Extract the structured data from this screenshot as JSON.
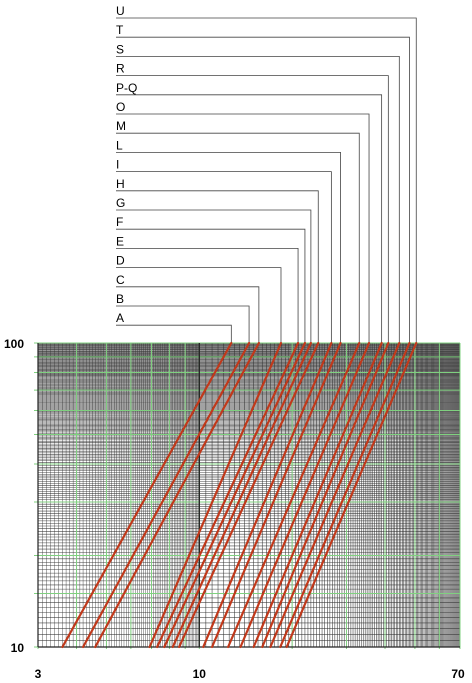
{
  "chart_data": {
    "type": "line",
    "title": "",
    "xlabel": "",
    "ylabel": "",
    "x_scale": "log",
    "y_scale": "log",
    "xlim": [
      3,
      70
    ],
    "ylim": [
      10,
      100
    ],
    "x_tick_labels": [
      "3",
      "10",
      "70"
    ],
    "y_tick_labels": [
      "100",
      "10"
    ],
    "grid": true,
    "grid_color": "#7fd07f",
    "grid_minor_color": "#333333",
    "line_color": "#c0391b",
    "legend": "top leader labels",
    "series": [
      {
        "name": "A",
        "x": [
          3.6,
          12.7
        ],
        "y": [
          10,
          100
        ]
      },
      {
        "name": "B",
        "x": [
          4.2,
          14.5
        ],
        "y": [
          10,
          100
        ]
      },
      {
        "name": "C",
        "x": [
          4.6,
          15.6
        ],
        "y": [
          10,
          100
        ]
      },
      {
        "name": "D",
        "x": [
          6.9,
          18.4
        ],
        "y": [
          10,
          100
        ]
      },
      {
        "name": "E",
        "x": [
          7.3,
          20.9
        ],
        "y": [
          10,
          100
        ]
      },
      {
        "name": "F",
        "x": [
          7.7,
          22.0
        ],
        "y": [
          10,
          100
        ]
      },
      {
        "name": "G",
        "x": [
          8.2,
          23.0
        ],
        "y": [
          10,
          100
        ]
      },
      {
        "name": "H",
        "x": [
          8.6,
          24.3
        ],
        "y": [
          10,
          100
        ]
      },
      {
        "name": "I",
        "x": [
          10.3,
          26.8
        ],
        "y": [
          10,
          100
        ]
      },
      {
        "name": "L",
        "x": [
          11.0,
          28.7
        ],
        "y": [
          10,
          100
        ]
      },
      {
        "name": "M",
        "x": [
          12.4,
          33.0
        ],
        "y": [
          10,
          100
        ]
      },
      {
        "name": "O",
        "x": [
          13.6,
          35.5
        ],
        "y": [
          10,
          100
        ]
      },
      {
        "name": "P-Q",
        "x": [
          15.0,
          39.0
        ],
        "y": [
          10,
          100
        ]
      },
      {
        "name": "R",
        "x": [
          16.0,
          41.0
        ],
        "y": [
          10,
          100
        ]
      },
      {
        "name": "S",
        "x": [
          17.0,
          44.5
        ],
        "y": [
          10,
          100
        ]
      },
      {
        "name": "T",
        "x": [
          18.3,
          48.0
        ],
        "y": [
          10,
          100
        ]
      },
      {
        "name": "U",
        "x": [
          19.2,
          50.5
        ],
        "y": [
          10,
          100
        ]
      }
    ]
  }
}
